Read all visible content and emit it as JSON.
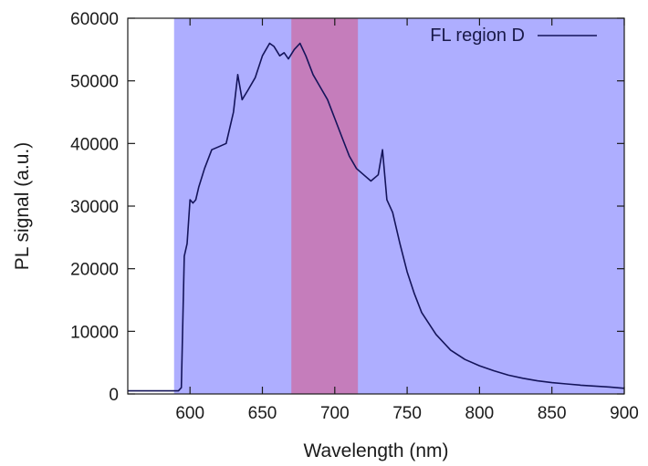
{
  "chart_data": {
    "type": "line",
    "xlabel": "Wavelength (nm)",
    "ylabel": "PL signal (a.u.)",
    "xlim": [
      557,
      900
    ],
    "ylim": [
      0,
      60000
    ],
    "x_ticks": [
      600,
      650,
      700,
      750,
      800,
      850,
      900
    ],
    "y_ticks": [
      0,
      10000,
      20000,
      30000,
      40000,
      50000,
      60000
    ],
    "grid": false,
    "legend_position": "top-right",
    "colors": {
      "line": "#14145a",
      "band_blue": "#aaaaff",
      "band_magenta": "#c878b4"
    },
    "shaded_regions": [
      {
        "x_start": 589,
        "x_end": 900,
        "color": "#aaaaff"
      },
      {
        "x_start": 670,
        "x_end": 716,
        "color": "#c878b4"
      }
    ],
    "series": [
      {
        "name": "FL region D",
        "x": [
          557,
          580,
          592,
          594,
          596,
          598,
          600,
          602,
          604,
          606,
          610,
          615,
          620,
          625,
          630,
          633,
          636,
          640,
          645,
          650,
          655,
          658,
          662,
          665,
          668,
          672,
          676,
          680,
          685,
          690,
          695,
          700,
          705,
          710,
          715,
          720,
          725,
          730,
          733,
          736,
          740,
          745,
          750,
          755,
          760,
          770,
          780,
          790,
          800,
          810,
          820,
          830,
          840,
          850,
          860,
          870,
          880,
          890,
          900
        ],
        "y": [
          500,
          500,
          500,
          1000,
          22000,
          24000,
          31000,
          30500,
          31000,
          33000,
          36000,
          39000,
          39500,
          40000,
          45000,
          51000,
          47000,
          48500,
          50500,
          54000,
          56000,
          55500,
          54000,
          54500,
          53500,
          55000,
          56000,
          54000,
          51000,
          49000,
          47000,
          44000,
          41000,
          38000,
          36000,
          35000,
          34000,
          35000,
          39000,
          31000,
          29000,
          24000,
          19500,
          16000,
          13000,
          9500,
          7000,
          5500,
          4500,
          3700,
          3000,
          2500,
          2100,
          1800,
          1600,
          1400,
          1250,
          1100,
          900
        ]
      }
    ]
  }
}
